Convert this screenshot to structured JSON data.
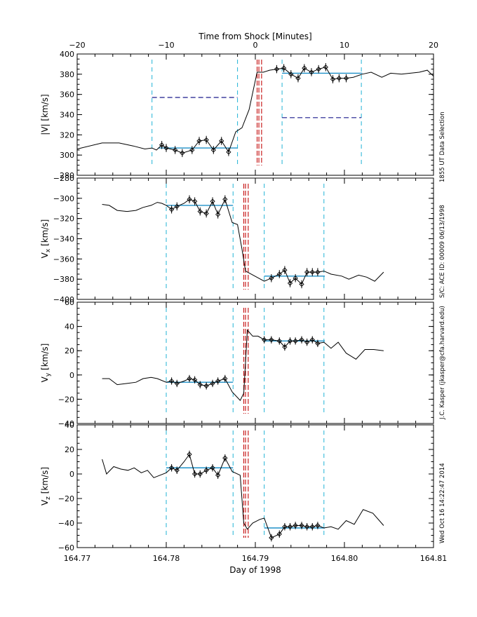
{
  "chart_data": {
    "type": "line",
    "top_axis": {
      "label": "Time from Shock [Minutes]",
      "ticks": [
        -20,
        -10,
        0,
        10,
        20
      ],
      "tick_labels": [
        "−20",
        "−10",
        "0",
        "10",
        "20"
      ],
      "range": [
        -20,
        20
      ]
    },
    "bottom_axis": {
      "label": "Day of 1998",
      "ticks": [
        164.77,
        164.78,
        164.79,
        164.8,
        164.81
      ],
      "tick_labels": [
        "164.77",
        "164.78",
        "164.79",
        "164.80",
        "164.81"
      ]
    },
    "side_notes": [
      "1855 UT Data Selection",
      "S/C: ACE ID: 00009 06/13/1998",
      "J.C. Kasper (jkasper@cfa.harvard.edu)",
      "Wed Oct 16 14:22:47 2014"
    ],
    "colors": {
      "line": "#000000",
      "fit": "#1e90c8",
      "window": "#21b3d6",
      "shock": "#c81e1e",
      "level": "#1a1a8c"
    },
    "panels": [
      {
        "id": "vmag",
        "ylabel": "|V| [km/s]",
        "xrange": [
          -20,
          20
        ],
        "ylim": [
          280,
          400
        ],
        "yticks": [
          280,
          300,
          320,
          340,
          360,
          380,
          400
        ],
        "ytick_labels": [
          "280",
          "300",
          "320",
          "340",
          "360",
          "380",
          "400"
        ],
        "line_x": [
          -20,
          -17.2,
          -15.3,
          -13.7,
          -12.4,
          -11.6,
          -11.1,
          -10.5,
          -10.0,
          -9.0,
          -8.2,
          -7.1,
          -6.3,
          -5.5,
          -4.7,
          -3.8,
          -3.0,
          -2.2,
          -1.5,
          -0.7,
          0.2,
          0.9,
          1.6,
          2.4,
          3.2,
          4.0,
          4.8,
          5.5,
          6.3,
          7.1,
          7.9,
          8.7,
          9.4,
          10.2,
          11.0,
          12.0,
          13.0,
          14.2,
          15.2,
          16.4,
          17.4,
          18.4,
          19.3,
          20
        ],
        "line_y": [
          306,
          312,
          312,
          309,
          306,
          307,
          305,
          310,
          307,
          305,
          302,
          305,
          314,
          315,
          305,
          314,
          303,
          323,
          327,
          345,
          382,
          382,
          384,
          385,
          386,
          380,
          376,
          386,
          382,
          385,
          387,
          375,
          376,
          376,
          377,
          380,
          382,
          377,
          381,
          380,
          381,
          382,
          384,
          378
        ],
        "points_x": [
          -10.5,
          -10.0,
          -9.0,
          -8.2,
          -7.1,
          -6.3,
          -5.5,
          -4.7,
          -3.8,
          -3.0,
          2.4,
          3.2,
          4.0,
          4.8,
          5.5,
          6.3,
          7.1,
          7.9,
          8.7,
          9.4,
          10.2
        ],
        "points_y": [
          310,
          307,
          305,
          302,
          305,
          314,
          315,
          305,
          314,
          303,
          385,
          386,
          380,
          376,
          386,
          382,
          385,
          387,
          375,
          376,
          376
        ],
        "error": 4,
        "upstream_fit": {
          "x": [
            -10.9,
            -2.0
          ],
          "y": 307
        },
        "downstream_fit": {
          "x": [
            3.0,
            12.0
          ],
          "y": 381
        },
        "upstream_level": {
          "x": [
            -11.6,
            -2.0
          ],
          "y": 357
        },
        "downstream_level": {
          "x": [
            3.0,
            11.9
          ],
          "y": 337
        },
        "windows": [
          -11.6,
          -2.0,
          3.0,
          11.9
        ],
        "shock_lines": [
          0.2,
          0.4,
          0.7
        ]
      },
      {
        "id": "vx",
        "ylabel": "Vx [km/s]",
        "ylabel_main": "V",
        "ylabel_sub": "x",
        "ylabel_unit": " [km/s]",
        "xrange": [
          164.77,
          164.81
        ],
        "ylim": [
          -400,
          -280
        ],
        "yticks": [
          -400,
          -380,
          -360,
          -340,
          -320,
          -300,
          -280
        ],
        "ytick_labels": [
          "−400",
          "−380",
          "−360",
          "−340",
          "−320",
          "−300",
          "−280"
        ],
        "line_x": [
          164.7728,
          164.7736,
          164.7745,
          164.7756,
          164.7766,
          164.7774,
          164.7783,
          164.779,
          164.7795,
          164.78,
          164.7806,
          164.7812,
          164.782,
          164.7826,
          164.7832,
          164.7838,
          164.7845,
          164.7852,
          164.7858,
          164.7866,
          164.7874,
          164.788,
          164.7885,
          164.7889,
          164.791,
          164.7918,
          164.7927,
          164.7933,
          164.7939,
          164.7945,
          164.7952,
          164.7958,
          164.7964,
          164.797,
          164.7977,
          164.7985,
          164.7997,
          164.8005,
          164.8016,
          164.8025,
          164.8034,
          164.8044
        ],
        "line_y": [
          -306,
          -307,
          -312,
          -313,
          -312,
          -309,
          -307,
          -304,
          -305,
          -307,
          -311,
          -308,
          -305,
          -301,
          -303,
          -313,
          -315,
          -303,
          -316,
          -301,
          -324,
          -326,
          -350,
          -372,
          -382,
          -379,
          -375,
          -371,
          -384,
          -379,
          -385,
          -373,
          -373,
          -373,
          -372,
          -375,
          -377,
          -380,
          -376,
          -378,
          -382,
          -373
        ],
        "points_x": [
          164.7806,
          164.7812,
          164.7826,
          164.7832,
          164.7838,
          164.7845,
          164.7852,
          164.7858,
          164.7866,
          164.7918,
          164.7927,
          164.7933,
          164.7939,
          164.7945,
          164.7952,
          164.7958,
          164.7964,
          164.797
        ],
        "points_y": [
          -311,
          -308,
          -301,
          -303,
          -313,
          -315,
          -303,
          -316,
          -301,
          -379,
          -375,
          -371,
          -384,
          -379,
          -385,
          -373,
          -373,
          -373
        ],
        "error": 4,
        "upstream_fit": {
          "x": [
            164.78,
            164.7875
          ],
          "y": -307
        },
        "downstream_fit": {
          "x": [
            164.791,
            164.7978
          ],
          "y": -377
        },
        "windows": [
          164.78,
          164.7875,
          164.791,
          164.7977
        ],
        "shock_lines": [
          164.7887,
          164.7889,
          164.7892
        ]
      },
      {
        "id": "vy",
        "ylabel": "Vy [km/s]",
        "ylabel_main": "V",
        "ylabel_sub": "y",
        "ylabel_unit": " [km/s]",
        "xrange": [
          164.77,
          164.81
        ],
        "ylim": [
          -40,
          60
        ],
        "yticks": [
          -40,
          -20,
          0,
          20,
          40,
          60
        ],
        "ytick_labels": [
          "−40",
          "−20",
          "0",
          "20",
          "40",
          "60"
        ],
        "line_x": [
          164.7728,
          164.7736,
          164.7745,
          164.7756,
          164.7766,
          164.7774,
          164.7783,
          164.779,
          164.78,
          164.7806,
          164.7812,
          164.782,
          164.7826,
          164.7832,
          164.7838,
          164.7845,
          164.7852,
          164.7858,
          164.7866,
          164.7874,
          164.7883,
          164.7887,
          164.7891,
          164.7897,
          164.7903,
          164.791,
          164.7918,
          164.7927,
          164.7933,
          164.7939,
          164.7945,
          164.7952,
          164.7958,
          164.7964,
          164.797,
          164.7977,
          164.7985,
          164.7993,
          164.8002,
          164.8013,
          164.8023,
          164.8033,
          164.8044
        ],
        "line_y": [
          -3,
          -3,
          -8,
          -7,
          -6,
          -3,
          -2,
          -3,
          -6,
          -5,
          -7,
          -5,
          -3,
          -4,
          -8,
          -9,
          -7,
          -5,
          -3,
          -14,
          -21,
          -15,
          37,
          32,
          32,
          29,
          29,
          28,
          23,
          28,
          28,
          29,
          27,
          29,
          26,
          27,
          22,
          27,
          18,
          13,
          21,
          21,
          20
        ],
        "points_x": [
          164.7806,
          164.7812,
          164.7826,
          164.7832,
          164.7838,
          164.7845,
          164.7852,
          164.7858,
          164.7866,
          164.791,
          164.7918,
          164.7927,
          164.7933,
          164.7939,
          164.7945,
          164.7952,
          164.7958,
          164.7964,
          164.797
        ],
        "points_y": [
          -5,
          -7,
          -3,
          -4,
          -8,
          -9,
          -7,
          -5,
          -3,
          29,
          29,
          28,
          23,
          28,
          28,
          29,
          27,
          29,
          26
        ],
        "error": 3,
        "upstream_fit": {
          "x": [
            164.78,
            164.7875
          ],
          "y": -6
        },
        "downstream_fit": {
          "x": [
            164.791,
            164.7978
          ],
          "y": 28
        },
        "windows": [
          164.78,
          164.7875,
          164.791,
          164.7977
        ],
        "shock_lines": [
          164.7887,
          164.7889,
          164.7892
        ]
      },
      {
        "id": "vz",
        "ylabel": "Vz [km/s]",
        "ylabel_main": "V",
        "ylabel_sub": "z",
        "ylabel_unit": " [km/s]",
        "xrange": [
          164.77,
          164.81
        ],
        "ylim": [
          -60,
          40
        ],
        "yticks": [
          -60,
          -40,
          -20,
          0,
          20,
          40
        ],
        "ytick_labels": [
          "−60",
          "−40",
          "−20",
          "0",
          "20",
          "40"
        ],
        "line_x": [
          164.7728,
          164.7733,
          164.7741,
          164.7749,
          164.7757,
          164.7764,
          164.7772,
          164.7779,
          164.7786,
          164.7793,
          164.78,
          164.7806,
          164.7812,
          164.782,
          164.7826,
          164.7832,
          164.7838,
          164.7845,
          164.7852,
          164.7858,
          164.7866,
          164.7874,
          164.7883,
          164.7887,
          164.7891,
          164.7897,
          164.7905,
          164.791,
          164.7918,
          164.7927,
          164.7933,
          164.7939,
          164.7945,
          164.7952,
          164.7958,
          164.7964,
          164.797,
          164.7977,
          164.7985,
          164.7993,
          164.8002,
          164.8011,
          164.8021,
          164.8032,
          164.8044
        ],
        "line_y": [
          12,
          0,
          6,
          4,
          3,
          5,
          1,
          3,
          -3,
          -1,
          1,
          5,
          3,
          10,
          16,
          0,
          0,
          3,
          5,
          -1,
          13,
          2,
          -1,
          -40,
          -45,
          -40,
          -37,
          -36,
          -52,
          -49,
          -43,
          -43,
          -42,
          -42,
          -43,
          -43,
          -42,
          -44,
          -43,
          -45,
          -38,
          -41,
          -29,
          -32,
          -42
        ],
        "points_x": [
          164.7806,
          164.7812,
          164.7826,
          164.7832,
          164.7838,
          164.7845,
          164.7852,
          164.7858,
          164.7866,
          164.7918,
          164.7927,
          164.7933,
          164.7939,
          164.7945,
          164.7952,
          164.7958,
          164.7964,
          164.797
        ],
        "points_y": [
          5,
          3,
          16,
          0,
          0,
          3,
          5,
          -1,
          13,
          -52,
          -49,
          -43,
          -43,
          -42,
          -42,
          -43,
          -43,
          -42
        ],
        "error": 3,
        "upstream_fit": {
          "x": [
            164.78,
            164.7875
          ],
          "y": 5
        },
        "downstream_fit": {
          "x": [
            164.791,
            164.7978
          ],
          "y": -44
        },
        "windows": [
          164.78,
          164.7875,
          164.791,
          164.7977
        ],
        "shock_lines": [
          164.7887,
          164.7889,
          164.7892
        ]
      }
    ]
  }
}
